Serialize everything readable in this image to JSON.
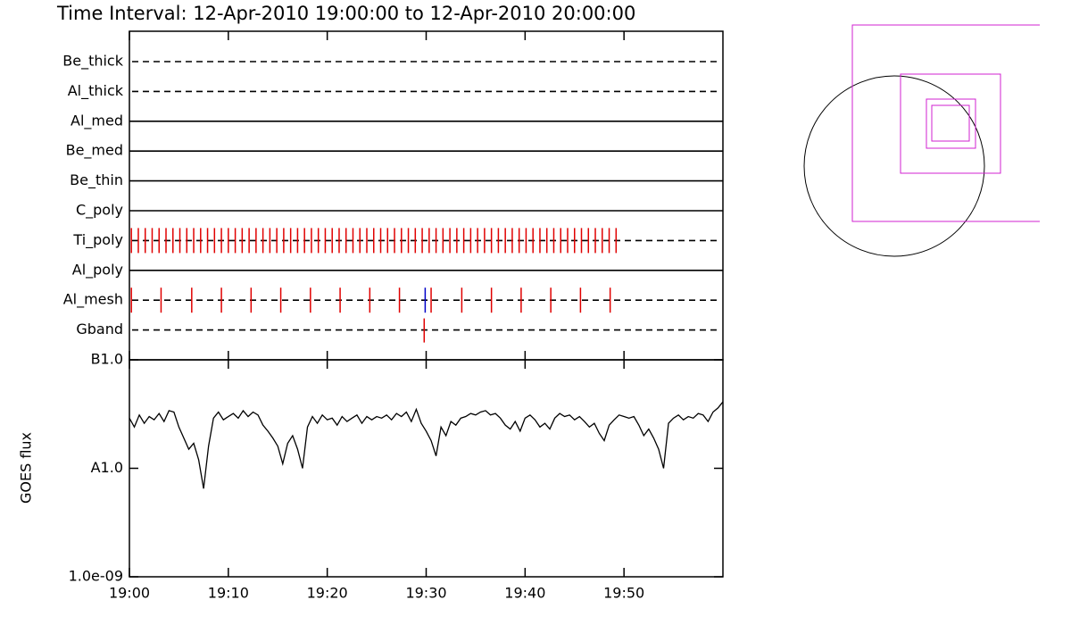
{
  "chart_data": [
    {
      "type": "timeline",
      "title": "Time Interval: 12-Apr-2010 19:00:00 to 12-Apr-2010 20:00:00",
      "xlim": [
        0,
        60
      ],
      "rows": [
        {
          "name": "Be_thick",
          "line": "dashed",
          "events": []
        },
        {
          "name": "Al_thick",
          "line": "dashed",
          "events": []
        },
        {
          "name": "Al_med",
          "line": "solid",
          "events": []
        },
        {
          "name": "Be_med",
          "line": "solid",
          "events": []
        },
        {
          "name": "Be_thin",
          "line": "solid",
          "events": []
        },
        {
          "name": "C_poly",
          "line": "solid",
          "events": []
        },
        {
          "name": "Ti_poly",
          "line": "dashed",
          "events": [
            {
              "color": "#e00000",
              "x": [
                0.2,
                0.9,
                1.6,
                2.3,
                3.0,
                3.7,
                4.4,
                5.1,
                5.8,
                6.5,
                7.2,
                7.9,
                8.6,
                9.3,
                10.0,
                10.7,
                11.4,
                12.1,
                12.8,
                13.5,
                14.2,
                14.9,
                15.6,
                16.3,
                17.0,
                17.7,
                18.4,
                19.1,
                19.8,
                20.5,
                21.2,
                21.9,
                22.6,
                23.3,
                24.0,
                24.7,
                25.4,
                26.1,
                26.8,
                27.5,
                28.2,
                28.9,
                29.6,
                30.3,
                31.0,
                31.7,
                32.4,
                33.1,
                33.8,
                34.5,
                35.2,
                35.9,
                36.6,
                37.3,
                38.0,
                38.7,
                39.4,
                40.1,
                40.8,
                41.5,
                42.2,
                42.9,
                43.6,
                44.3,
                45.0,
                45.7,
                46.4,
                47.1,
                47.8,
                48.5,
                49.2
              ]
            }
          ]
        },
        {
          "name": "Al_poly",
          "line": "solid",
          "events": []
        },
        {
          "name": "Al_mesh",
          "line": "dashed",
          "events": [
            {
              "color": "#e00000",
              "x": [
                0.2,
                3.2,
                6.3,
                9.3,
                12.3,
                15.3,
                18.3,
                21.3,
                24.3,
                27.3,
                30.5,
                33.6,
                36.6,
                39.6,
                42.6,
                45.6,
                48.6
              ]
            },
            {
              "color": "#0000c8",
              "x": [
                29.9
              ]
            }
          ]
        },
        {
          "name": "Gband",
          "line": "dashed",
          "events": [
            {
              "color": "#e00000",
              "x": [
                29.8
              ]
            }
          ]
        }
      ]
    },
    {
      "type": "line",
      "ylabel": "GOES flux",
      "color": "#000000",
      "log": true,
      "xlim": [
        0,
        60
      ],
      "xticks": [
        {
          "value": 0,
          "label": "19:00"
        },
        {
          "value": 10,
          "label": "19:10"
        },
        {
          "value": 20,
          "label": "19:20"
        },
        {
          "value": 30,
          "label": "19:30"
        },
        {
          "value": 40,
          "label": "19:40"
        },
        {
          "value": 50,
          "label": "19:50"
        }
      ],
      "ylim": [
        1e-09,
        1e-07
      ],
      "yticks": [
        {
          "value": 1e-07,
          "label": "B1.0"
        },
        {
          "value": 1e-08,
          "label": "A1.0"
        },
        {
          "value": 1e-09,
          "label": "1.0e-09"
        }
      ],
      "x": [
        0,
        0.5,
        1,
        1.5,
        2,
        2.5,
        3,
        3.5,
        4,
        4.5,
        5,
        5.5,
        6,
        6.5,
        7,
        7.5,
        8,
        8.5,
        9,
        9.5,
        10,
        10.5,
        11,
        11.5,
        12,
        12.5,
        13,
        13.5,
        14,
        14.5,
        15,
        15.5,
        16,
        16.5,
        17,
        17.5,
        18,
        18.5,
        19,
        19.5,
        20,
        20.5,
        21,
        21.5,
        22,
        22.5,
        23,
        23.5,
        24,
        24.5,
        25,
        25.5,
        26,
        26.5,
        27,
        27.5,
        28,
        28.5,
        29,
        29.5,
        30,
        30.5,
        31,
        31.5,
        32,
        32.5,
        33,
        33.5,
        34,
        34.5,
        35,
        35.5,
        36,
        36.5,
        37,
        37.5,
        38,
        38.5,
        39,
        39.5,
        40,
        40.5,
        41,
        41.5,
        42,
        42.5,
        43,
        43.5,
        44,
        44.5,
        45,
        45.5,
        46,
        46.5,
        47,
        47.5,
        48,
        48.5,
        49,
        49.5,
        50,
        50.5,
        51,
        51.5,
        52,
        52.5,
        53,
        53.5,
        54,
        54.5,
        55,
        55.5,
        56,
        56.5,
        57,
        57.5,
        58,
        58.5,
        59,
        59.5,
        60
      ],
      "values": [
        2.9e-08,
        2.4e-08,
        3.1e-08,
        2.6e-08,
        3e-08,
        2.8e-08,
        3.2e-08,
        2.7e-08,
        3.4e-08,
        3.3e-08,
        2.4e-08,
        1.9e-08,
        1.5e-08,
        1.7e-08,
        1.2e-08,
        6.5e-09,
        1.6e-08,
        2.9e-08,
        3.3e-08,
        2.8e-08,
        3e-08,
        3.2e-08,
        2.9e-08,
        3.4e-08,
        3e-08,
        3.3e-08,
        3.1e-08,
        2.5e-08,
        2.2e-08,
        1.9e-08,
        1.6e-08,
        1.1e-08,
        1.7e-08,
        2e-08,
        1.5e-08,
        1e-08,
        2.4e-08,
        3e-08,
        2.6e-08,
        3.1e-08,
        2.8e-08,
        2.9e-08,
        2.5e-08,
        3e-08,
        2.7e-08,
        2.9e-08,
        3.1e-08,
        2.6e-08,
        3e-08,
        2.8e-08,
        3e-08,
        2.9e-08,
        3.1e-08,
        2.8e-08,
        3.2e-08,
        3e-08,
        3.3e-08,
        2.7e-08,
        3.5e-08,
        2.6e-08,
        2.2e-08,
        1.8e-08,
        1.3e-08,
        2.4e-08,
        2e-08,
        2.7e-08,
        2.5e-08,
        2.9e-08,
        3e-08,
        3.2e-08,
        3.1e-08,
        3.3e-08,
        3.4e-08,
        3.1e-08,
        3.2e-08,
        2.9e-08,
        2.5e-08,
        2.3e-08,
        2.7e-08,
        2.2e-08,
        2.9e-08,
        3.1e-08,
        2.8e-08,
        2.4e-08,
        2.6e-08,
        2.3e-08,
        2.9e-08,
        3.2e-08,
        3e-08,
        3.1e-08,
        2.8e-08,
        3e-08,
        2.7e-08,
        2.4e-08,
        2.6e-08,
        2.1e-08,
        1.8e-08,
        2.5e-08,
        2.8e-08,
        3.1e-08,
        3e-08,
        2.9e-08,
        3e-08,
        2.5e-08,
        2e-08,
        2.3e-08,
        1.9e-08,
        1.5e-08,
        1e-08,
        2.6e-08,
        2.9e-08,
        3.1e-08,
        2.8e-08,
        3e-08,
        2.9e-08,
        3.2e-08,
        3.1e-08,
        2.7e-08,
        3.3e-08,
        3.6e-08,
        4.1e-08
      ]
    }
  ]
}
